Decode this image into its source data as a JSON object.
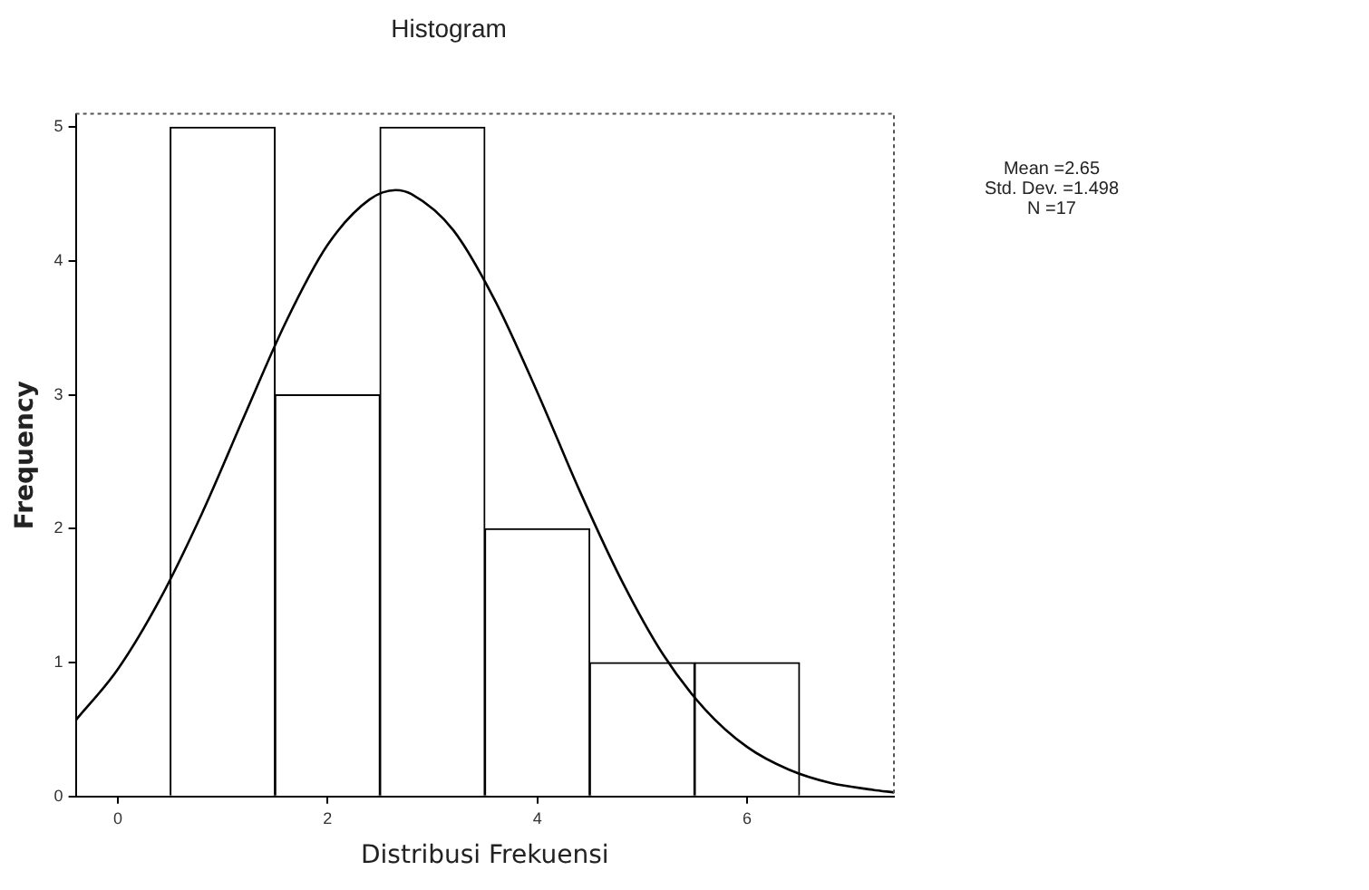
{
  "chart_data": {
    "type": "histogram",
    "title": "Histogram",
    "xlabel": "Distribusi Frekuensi",
    "ylabel": "Frequency",
    "bins": [
      0.5,
      1.5,
      2.5,
      3.5,
      4.5,
      5.5,
      6.5
    ],
    "series": [
      {
        "color": "#ffffff",
        "values": [
          5,
          3,
          5,
          2,
          1,
          1
        ]
      },
      {
        "type": "line",
        "color": "#000000",
        "x": [
          -0.4,
          0,
          0.4,
          0.8,
          1.2,
          1.6,
          2.0,
          2.4,
          2.65,
          2.8,
          3.2,
          3.6,
          4.0,
          4.4,
          4.8,
          5.2,
          5.6,
          6.0,
          6.4,
          6.8,
          7.2,
          7.4
        ],
        "values": [
          0.57,
          0.95,
          1.47,
          2.11,
          2.83,
          3.54,
          4.12,
          4.46,
          4.53,
          4.5,
          4.23,
          3.7,
          3.02,
          2.29,
          1.62,
          1.06,
          0.65,
          0.37,
          0.2,
          0.1,
          0.05,
          0.03
        ]
      }
    ],
    "xlim": [
      -0.4,
      7.4
    ],
    "xticks": [
      0,
      2,
      4,
      6
    ],
    "ylim": [
      0,
      5.1
    ],
    "yticks": [
      0,
      1,
      2,
      3,
      4,
      5
    ],
    "grid": false,
    "legend": false,
    "marker": "none",
    "line_style": "solid",
    "annotations": [
      "Mean =2.65",
      "Std. Dev. =1.498",
      "N =17"
    ]
  }
}
